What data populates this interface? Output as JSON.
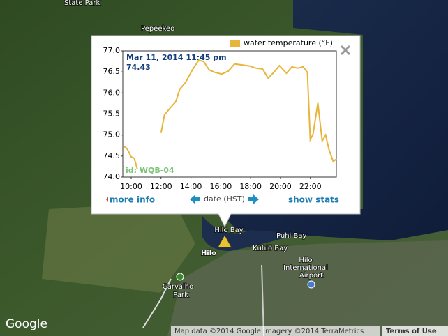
{
  "map": {
    "labels": [
      "State Park",
      "Pepeekeo",
      "Hilo Bay",
      "Puhi Bay",
      "Kūhiō Bay",
      "Hilo",
      "Hilo",
      "International",
      "Airport",
      "Carvalho",
      "Park"
    ],
    "logo": "Google",
    "attribution": "Map data ©2014 Google Imagery ©2014 TerraMetrics",
    "terms": "Terms of Use"
  },
  "popup": {
    "more_info": "more info",
    "show_stats": "show stats",
    "id": "id: WQB-04"
  },
  "chart_data": {
    "type": "line",
    "xlabel": "date (HST)",
    "annotation": [
      "Mar 11, 2014 11:45 pm",
      "74.43"
    ],
    "series": [
      {
        "name": "water temperature (°F)",
        "color": "#e8b53c",
        "x": [
          9.44,
          9.72,
          10.0,
          10.2,
          10.42,
          null,
          12.0,
          12.23,
          12.6,
          12.98,
          13.26,
          13.64,
          14.1,
          14.52,
          14.85,
          15.22,
          15.6,
          16.07,
          16.5,
          16.92,
          17.34,
          17.95,
          18.33,
          18.8,
          19.17,
          19.55,
          19.92,
          20.4,
          20.77,
          21.15,
          21.52,
          21.8,
          21.99,
          22.18,
          22.5,
          22.79,
          23.02,
          23.25,
          23.53,
          23.74
        ],
        "values": [
          74.75,
          74.68,
          74.48,
          74.45,
          74.18,
          null,
          75.05,
          75.48,
          75.64,
          75.79,
          76.09,
          76.25,
          76.55,
          76.78,
          76.75,
          76.55,
          76.49,
          76.45,
          76.52,
          76.69,
          76.67,
          76.64,
          76.59,
          76.57,
          76.35,
          76.49,
          76.65,
          76.47,
          76.62,
          76.59,
          76.62,
          76.49,
          74.89,
          75.02,
          75.76,
          74.86,
          75.0,
          74.65,
          74.37,
          74.43
        ]
      }
    ],
    "xlim": [
      9.44,
      23.74
    ],
    "xticks": [
      {
        "value": 10,
        "label": "10:00"
      },
      {
        "value": 12,
        "label": "12:00"
      },
      {
        "value": 14,
        "label": "14:00"
      },
      {
        "value": 16,
        "label": "16:00"
      },
      {
        "value": 18,
        "label": "18:00"
      },
      {
        "value": 20,
        "label": "20:00"
      },
      {
        "value": 22,
        "label": "22:00"
      }
    ],
    "ylim": [
      74,
      77
    ],
    "yticks": [
      {
        "value": 74,
        "label": "74.0"
      },
      74.5,
      {
        "value": 75,
        "label": "75.0"
      },
      75.5,
      {
        "value": 76,
        "label": "76.0"
      },
      76.5,
      {
        "value": 77,
        "label": "77.0"
      }
    ]
  }
}
